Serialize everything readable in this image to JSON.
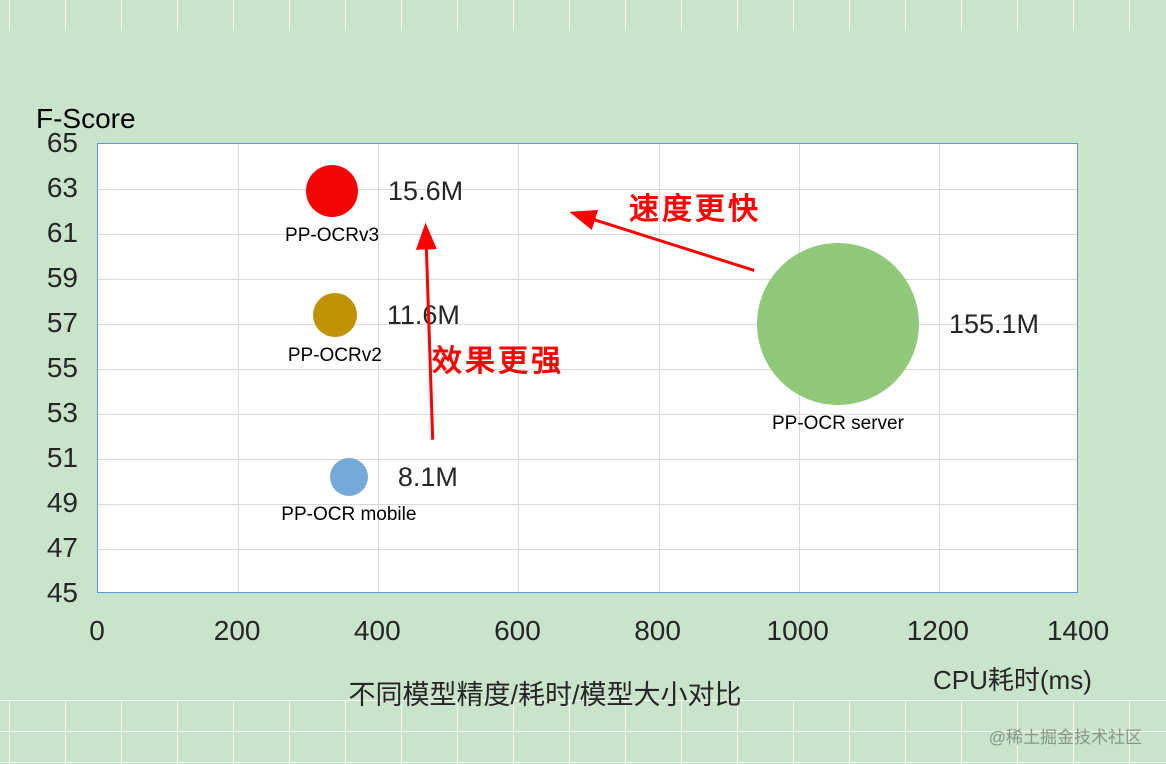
{
  "sheet": {
    "background_color": "#c9e4ca",
    "watermark": "@稀土掘金技术社区"
  },
  "chart_data": {
    "type": "scatter",
    "title": "不同模型精度/耗时/模型大小对比",
    "xlabel": "CPU耗时(ms)",
    "ylabel": "F-Score",
    "xlim": [
      0,
      1400
    ],
    "ylim": [
      45,
      65
    ],
    "x_ticks": [
      0,
      200,
      400,
      600,
      800,
      1000,
      1200,
      1400
    ],
    "y_ticks": [
      45,
      47,
      49,
      51,
      53,
      55,
      57,
      59,
      61,
      63,
      65
    ],
    "grid": true,
    "legend": false,
    "plot_border_color": "#5b9bd5",
    "gridline_color": "#d9d9d9",
    "points": [
      {
        "name": "PP-OCRv3",
        "x": 334,
        "y": 62.9,
        "model_size": "15.6M",
        "color": "#f40404",
        "radius_px": 26
      },
      {
        "name": "PP-OCRv2",
        "x": 338,
        "y": 57.4,
        "model_size": "11.6M",
        "color": "#c09206",
        "radius_px": 22
      },
      {
        "name": "PP-OCR mobile",
        "x": 358,
        "y": 50.2,
        "model_size": "8.1M",
        "color": "#74a9d8",
        "radius_px": 19
      },
      {
        "name": "PP-OCR server",
        "x": 1056,
        "y": 57.0,
        "model_size": "155.1M",
        "color": "#8ec878",
        "radius_px": 81
      }
    ],
    "annotations": [
      {
        "text": "速度更快",
        "color": "#fe0000"
      },
      {
        "text": "效果更强",
        "color": "#fe0000"
      }
    ]
  }
}
